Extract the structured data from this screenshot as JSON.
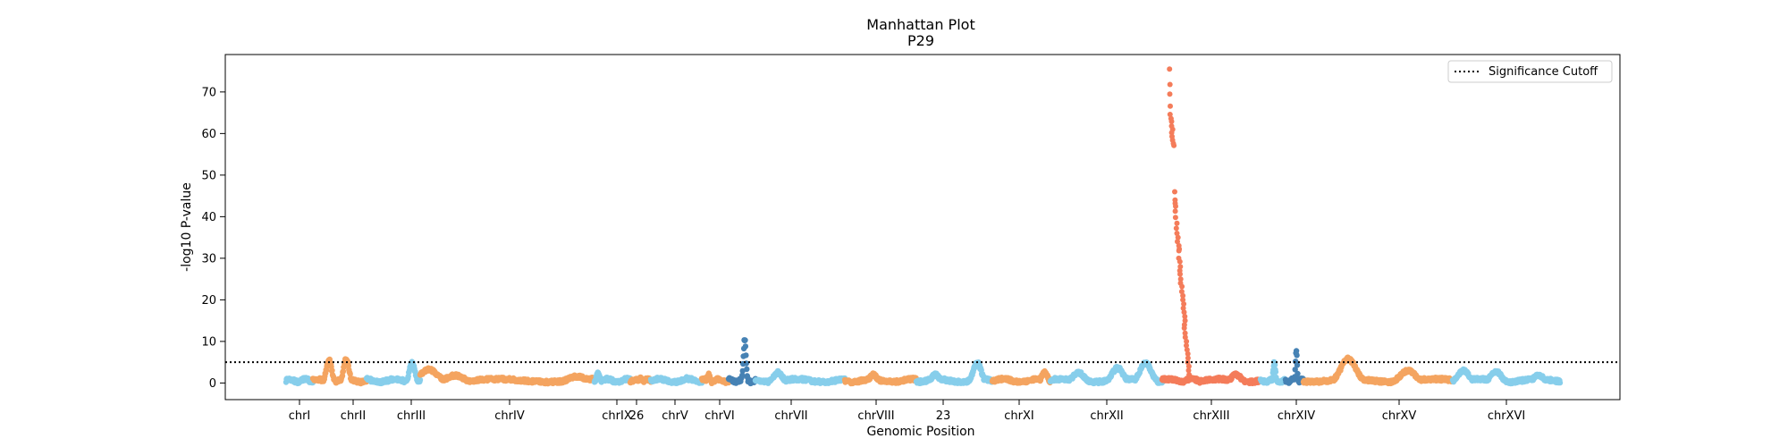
{
  "chart_data": {
    "type": "scatter",
    "title": "Manhattan Plot",
    "subtitle": "P29",
    "xlabel": "Genomic Position",
    "ylabel": "-log10 P-value",
    "ylim": [
      -4,
      79
    ],
    "yticks": [
      0,
      10,
      20,
      30,
      40,
      50,
      60,
      70
    ],
    "grid": false,
    "legend": {
      "placement": "top-right",
      "entries": [
        "Significance Cutoff"
      ]
    },
    "significance_cutoff": 5,
    "colors": {
      "orange": "#f4a460",
      "light_blue": "#87ceeb",
      "dark_blue": "#4682b4",
      "coral": "#f47c5a"
    },
    "chromosomes": [
      {
        "label": "chrI",
        "color": "light_blue",
        "peaks": []
      },
      {
        "label": "chrII",
        "color": "orange",
        "peaks": [
          [
            0.3,
            5.5
          ],
          [
            0.62,
            5.8
          ]
        ]
      },
      {
        "label": "chrIII",
        "color": "light_blue",
        "peaks": [
          [
            0.85,
            5.2
          ]
        ]
      },
      {
        "label": "chrIV",
        "color": "orange",
        "peaks": [
          [
            0.05,
            3.2
          ],
          [
            0.2,
            1.8
          ],
          [
            0.9,
            1.6
          ]
        ]
      },
      {
        "label": "chrIX",
        "color": "light_blue",
        "peaks": [
          [
            0.1,
            2.2
          ]
        ]
      },
      {
        "label": "26",
        "color": "orange",
        "peaks": [
          [
            0.5,
            1.2
          ]
        ]
      },
      {
        "label": "chrV",
        "color": "light_blue",
        "peaks": [
          [
            0.7,
            1.2
          ]
        ]
      },
      {
        "label": "chrVI",
        "color": "orange",
        "peaks": [
          [
            0.25,
            2.0
          ]
        ]
      },
      {
        "label": "",
        "color": "dark_blue",
        "peaks": [
          [
            0.6,
            10.5
          ]
        ]
      },
      {
        "label": "chrVII",
        "color": "light_blue",
        "peaks": [
          [
            0.25,
            2.5
          ]
        ]
      },
      {
        "label": "chrVIII",
        "color": "orange",
        "peaks": [
          [
            0.4,
            2.0
          ]
        ]
      },
      {
        "label": "23",
        "color": "light_blue",
        "peaks": [
          [
            0.25,
            2.0
          ],
          [
            0.8,
            5.0
          ]
        ]
      },
      {
        "label": "chrXI",
        "color": "orange",
        "peaks": [
          [
            0.9,
            2.5
          ]
        ]
      },
      {
        "label": "chrXII",
        "color": "light_blue",
        "peaks": [
          [
            0.25,
            2.5
          ],
          [
            0.6,
            3.6
          ],
          [
            0.85,
            4.8
          ]
        ]
      },
      {
        "label": "chrXIII",
        "color": "coral",
        "peaks": [
          [
            0.3,
            1.2
          ],
          [
            0.75,
            2.0
          ]
        ],
        "spike": {
          "values": [
            75.5,
            71.8,
            69.5,
            66.6,
            64.6,
            63.6,
            62.9,
            61.8,
            61.0,
            60.2,
            59.3,
            58.4,
            57.6,
            57.1,
            46.0,
            44.0,
            43.2,
            42.5,
            41.3,
            39.8,
            38.4,
            37.2,
            36.0,
            35.0,
            34.0,
            33.0,
            32.2,
            31.8,
            30.0,
            29.2,
            28.0,
            27.0,
            26.2,
            25.0,
            24.0,
            23.2,
            22.0,
            21.0,
            20.0,
            19.0,
            18.0,
            17.0,
            16.0,
            15.0,
            14.0,
            13.2,
            12.0,
            11.0,
            10.0,
            9.0,
            8.0,
            7.0,
            6.0,
            5.0,
            4.0,
            3.0,
            2.0
          ]
        }
      },
      {
        "label": "chrXIV",
        "color": "light_blue",
        "peaks": [
          [
            0.55,
            5.0
          ]
        ]
      },
      {
        "label": "",
        "color": "dark_blue",
        "peaks": [
          [
            0.6,
            7.5
          ]
        ]
      },
      {
        "label": "chrXV",
        "color": "orange",
        "peaks": [
          [
            0.3,
            5.8
          ],
          [
            0.7,
            3.0
          ]
        ]
      },
      {
        "label": "chrXVI",
        "color": "light_blue",
        "peaks": [
          [
            0.1,
            3.0
          ],
          [
            0.4,
            2.8
          ],
          [
            0.8,
            1.8
          ]
        ]
      }
    ]
  }
}
